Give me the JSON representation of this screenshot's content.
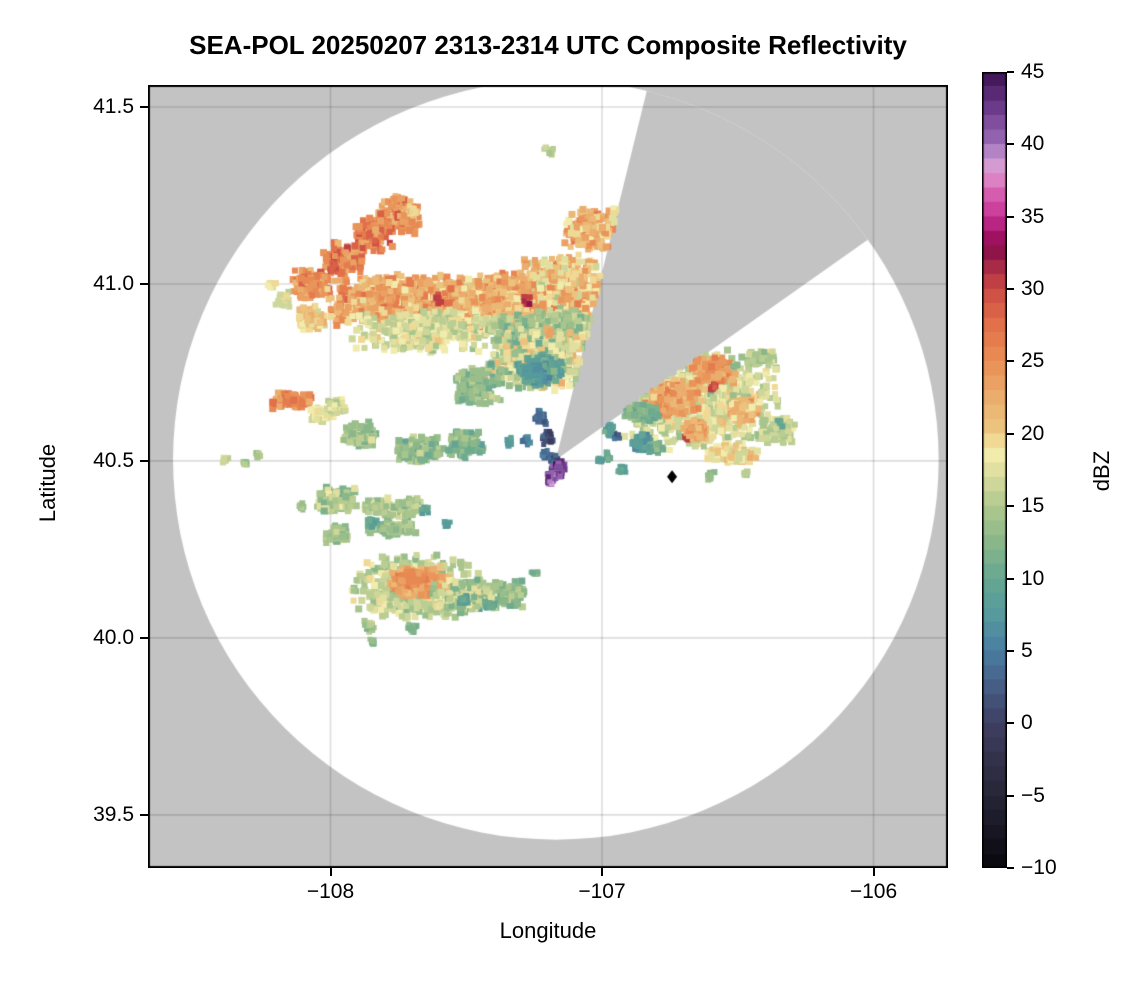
{
  "title": "SEA-POL 20250207 2313-2314 UTC Composite Reflectivity",
  "axes": {
    "xlabel": "Longitude",
    "ylabel": "Latitude",
    "x_ticks": [
      {
        "value": -108,
        "label": "−108"
      },
      {
        "value": -107,
        "label": "−107"
      },
      {
        "value": -106,
        "label": "−106"
      }
    ],
    "y_ticks": [
      {
        "value": 41.5,
        "label": "41.5"
      },
      {
        "value": 41.0,
        "label": "41.0"
      },
      {
        "value": 40.5,
        "label": "40.5"
      },
      {
        "value": 40.0,
        "label": "40.0"
      },
      {
        "value": 39.5,
        "label": "39.5"
      }
    ],
    "lon_min": -108.6722,
    "lon_max": -105.7257,
    "lat_min": 39.35,
    "lat_max": 41.562,
    "grid": true
  },
  "colorbar": {
    "label": "dBZ",
    "vmin": -10,
    "vmax": 45,
    "step": 1,
    "ticks": [
      {
        "value": 45,
        "label": "45"
      },
      {
        "value": 40,
        "label": "40"
      },
      {
        "value": 35,
        "label": "35"
      },
      {
        "value": 30,
        "label": "30"
      },
      {
        "value": 25,
        "label": "25"
      },
      {
        "value": 20,
        "label": "20"
      },
      {
        "value": 15,
        "label": "15"
      },
      {
        "value": 10,
        "label": "10"
      },
      {
        "value": 5,
        "label": "5"
      },
      {
        "value": 0,
        "label": "0"
      },
      {
        "value": -5,
        "label": "−5"
      },
      {
        "value": -10,
        "label": "−10"
      }
    ],
    "colormap_anchors": [
      [
        -10,
        "#08070c"
      ],
      [
        -7.5,
        "#171622"
      ],
      [
        -5,
        "#262536"
      ],
      [
        -2.5,
        "#33324b"
      ],
      [
        0,
        "#3f3f63"
      ],
      [
        2.5,
        "#465d85"
      ],
      [
        5,
        "#4a7da2"
      ],
      [
        7.5,
        "#569a9d"
      ],
      [
        10,
        "#66a791"
      ],
      [
        12.5,
        "#8ab78a"
      ],
      [
        15,
        "#b0c88e"
      ],
      [
        17.5,
        "#e2e0a0"
      ],
      [
        18.8,
        "#f6f0b0"
      ],
      [
        20,
        "#ecc982"
      ],
      [
        22.5,
        "#ebad6d"
      ],
      [
        25,
        "#e98f55"
      ],
      [
        27.5,
        "#e2704a"
      ],
      [
        30,
        "#cb4a43"
      ],
      [
        32.5,
        "#8f1449"
      ],
      [
        33.8,
        "#a31168"
      ],
      [
        35,
        "#c73394"
      ],
      [
        36.5,
        "#d55cae"
      ],
      [
        37.5,
        "#dc82c4"
      ],
      [
        38.8,
        "#d2a3d8"
      ],
      [
        40,
        "#9d6cb8"
      ],
      [
        42.5,
        "#6c3a8a"
      ],
      [
        45,
        "#3c1150"
      ]
    ]
  },
  "colors": {
    "background": "#ffffff",
    "no_data_gray": "#c3c3c3",
    "grid_line": "rgba(0,0,0,0.135)",
    "frame": "#000000",
    "marker": "#000000"
  },
  "chart_data": {
    "type": "heatmap",
    "units": "dBZ",
    "radar_center": {
      "lon": -107.17,
      "lat": 40.503
    },
    "range_radius_lon_deg": 1.41,
    "range_radius_lat_deg": 1.073,
    "blocked_sector": {
      "vertex": {
        "lon": -107.17,
        "lat": 40.503
      },
      "edge_a_through": {
        "lon": -106.84,
        "lat": 41.53
      },
      "edge_b_through": {
        "lon": -106.03,
        "lat": 41.12
      }
    },
    "site_marker": {
      "lon": -106.742,
      "lat": 40.455
    },
    "echo_region_fields": [
      "lon",
      "lat",
      "width_deg",
      "height_deg",
      "dbz",
      "dbz_spread",
      "n_cells",
      "cell_px"
    ],
    "echo_regions": [
      [
        -107.75,
        41.19,
        0.18,
        0.1,
        25,
        5,
        130,
        6
      ],
      [
        -107.84,
        41.14,
        0.16,
        0.1,
        26,
        5,
        130,
        6
      ],
      [
        -107.95,
        41.07,
        0.16,
        0.1,
        26,
        5,
        140,
        6
      ],
      [
        -108.07,
        41.0,
        0.16,
        0.09,
        25,
        5,
        140,
        6
      ],
      [
        -107.99,
        41.05,
        0.04,
        0.03,
        29,
        2,
        12,
        5
      ],
      [
        -107.76,
        41.23,
        0.06,
        0.04,
        24,
        3,
        25,
        5
      ],
      [
        -107.7,
        41.21,
        0.05,
        0.04,
        20,
        3,
        18,
        5
      ],
      [
        -108.22,
        40.997,
        0.04,
        0.03,
        18,
        2,
        10,
        5
      ],
      [
        -108.175,
        40.955,
        0.06,
        0.05,
        17,
        3,
        25,
        5
      ],
      [
        -107.74,
        40.955,
        0.55,
        0.15,
        23,
        6,
        750,
        6
      ],
      [
        -107.41,
        40.955,
        0.45,
        0.16,
        22,
        6,
        650,
        6
      ],
      [
        -107.135,
        40.99,
        0.34,
        0.2,
        21,
        7,
        520,
        6
      ],
      [
        -107.63,
        40.87,
        0.6,
        0.13,
        17,
        4,
        380,
        6
      ],
      [
        -107.1,
        40.875,
        0.25,
        0.12,
        15,
        5,
        200,
        6
      ],
      [
        -108.075,
        40.904,
        0.12,
        0.08,
        20,
        4,
        90,
        6
      ],
      [
        -107.6,
        40.96,
        0.03,
        0.03,
        30,
        2,
        8,
        5
      ],
      [
        -107.28,
        40.95,
        0.03,
        0.03,
        31,
        2,
        8,
        5
      ],
      [
        -107.04,
        41.15,
        0.2,
        0.13,
        22,
        5,
        170,
        6
      ],
      [
        -106.915,
        41.19,
        0.12,
        0.08,
        19,
        4,
        70,
        6
      ],
      [
        -107.195,
        41.376,
        0.04,
        0.03,
        15,
        2,
        8,
        5
      ],
      [
        -107.23,
        40.87,
        0.35,
        0.12,
        14,
        4,
        240,
        6
      ],
      [
        -107.23,
        40.785,
        0.4,
        0.18,
        17,
        8,
        480,
        6
      ],
      [
        -107.23,
        40.757,
        0.18,
        0.09,
        9,
        4,
        150,
        6
      ],
      [
        -107.255,
        40.752,
        0.07,
        0.04,
        7,
        2,
        45,
        6
      ],
      [
        -107.457,
        40.715,
        0.1,
        0.07,
        24,
        4,
        85,
        6
      ],
      [
        -107.457,
        40.715,
        0.2,
        0.13,
        13,
        4,
        130,
        6
      ],
      [
        -107.891,
        40.573,
        0.14,
        0.08,
        14,
        4,
        95,
        6
      ],
      [
        -107.67,
        40.531,
        0.18,
        0.08,
        13,
        4,
        115,
        6
      ],
      [
        -107.505,
        40.545,
        0.14,
        0.09,
        12,
        4,
        95,
        6
      ],
      [
        -108.142,
        40.672,
        0.16,
        0.055,
        25,
        4,
        95,
        6
      ],
      [
        -108.03,
        40.63,
        0.1,
        0.045,
        18,
        3,
        45,
        6
      ],
      [
        -107.976,
        40.655,
        0.08,
        0.05,
        17,
        3,
        38,
        5
      ],
      [
        -107.23,
        40.624,
        0.05,
        0.05,
        3,
        3,
        26,
        5
      ],
      [
        -107.2,
        40.568,
        0.045,
        0.05,
        1,
        3,
        22,
        5
      ],
      [
        -107.276,
        40.559,
        0.035,
        0.03,
        5,
        2,
        12,
        5
      ],
      [
        -107.339,
        40.554,
        0.03,
        0.03,
        8,
        2,
        10,
        5
      ],
      [
        -107.175,
        40.5,
        0.05,
        0.05,
        2,
        4,
        40,
        5
      ],
      [
        -107.16,
        40.475,
        0.05,
        0.06,
        42,
        3,
        50,
        5
      ],
      [
        -107.185,
        40.45,
        0.04,
        0.04,
        41,
        3,
        30,
        5
      ],
      [
        -107.21,
        40.52,
        0.03,
        0.03,
        4,
        2,
        12,
        5
      ],
      [
        -106.64,
        40.67,
        0.62,
        0.3,
        17,
        5,
        850,
        6
      ],
      [
        -106.74,
        40.68,
        0.22,
        0.12,
        23,
        4,
        220,
        6
      ],
      [
        -106.59,
        40.755,
        0.18,
        0.08,
        24,
        4,
        150,
        6
      ],
      [
        -106.585,
        40.71,
        0.03,
        0.025,
        30,
        2,
        10,
        5
      ],
      [
        -106.685,
        40.565,
        0.03,
        0.025,
        30,
        2,
        10,
        5
      ],
      [
        -106.654,
        40.588,
        0.1,
        0.06,
        23,
        3,
        90,
        6
      ],
      [
        -106.474,
        40.644,
        0.12,
        0.07,
        22,
        4,
        100,
        6
      ],
      [
        -106.86,
        40.638,
        0.14,
        0.06,
        12,
        3,
        90,
        6
      ],
      [
        -106.86,
        40.553,
        0.08,
        0.05,
        8,
        3,
        60,
        6
      ],
      [
        -106.945,
        40.568,
        0.03,
        0.03,
        3,
        2,
        12,
        5
      ],
      [
        -106.97,
        40.588,
        0.05,
        0.04,
        9,
        3,
        25,
        5
      ],
      [
        -106.8,
        40.54,
        0.06,
        0.04,
        11,
        3,
        40,
        5
      ],
      [
        -106.35,
        40.585,
        0.14,
        0.08,
        16,
        3,
        100,
        6
      ],
      [
        -106.41,
        40.79,
        0.1,
        0.05,
        15,
        3,
        50,
        6
      ],
      [
        -106.51,
        40.77,
        0.03,
        0.03,
        12,
        2,
        8,
        5
      ],
      [
        -106.52,
        40.52,
        0.2,
        0.06,
        19,
        4,
        120,
        6
      ],
      [
        -106.6,
        40.455,
        0.03,
        0.03,
        14,
        2,
        10,
        5
      ],
      [
        -106.47,
        40.47,
        0.03,
        0.03,
        15,
        2,
        8,
        5
      ],
      [
        -107.007,
        40.503,
        0.025,
        0.025,
        9,
        2,
        8,
        5
      ],
      [
        -106.345,
        40.607,
        0.025,
        0.025,
        9,
        2,
        6,
        5
      ],
      [
        -106.926,
        40.477,
        0.035,
        0.03,
        9,
        2,
        12,
        5
      ],
      [
        -106.978,
        40.514,
        0.03,
        0.03,
        10,
        2,
        10,
        5
      ],
      [
        -107.98,
        40.39,
        0.17,
        0.08,
        15,
        4,
        110,
        6
      ],
      [
        -107.762,
        40.367,
        0.25,
        0.06,
        15,
        4,
        140,
        6
      ],
      [
        -107.976,
        40.291,
        0.09,
        0.06,
        14,
        3,
        50,
        6
      ],
      [
        -107.78,
        40.31,
        0.2,
        0.05,
        14,
        3,
        80,
        6
      ],
      [
        -107.847,
        40.328,
        0.04,
        0.03,
        9,
        2,
        20,
        5
      ],
      [
        -107.652,
        40.362,
        0.03,
        0.025,
        9,
        2,
        12,
        5
      ],
      [
        -107.571,
        40.322,
        0.03,
        0.025,
        8,
        2,
        10,
        5
      ],
      [
        -107.69,
        40.141,
        0.5,
        0.19,
        16,
        4,
        520,
        6
      ],
      [
        -107.67,
        40.155,
        0.25,
        0.09,
        23,
        3,
        220,
        6
      ],
      [
        -107.707,
        40.169,
        0.12,
        0.05,
        25,
        2,
        80,
        6
      ],
      [
        -107.479,
        40.102,
        0.07,
        0.06,
        10,
        3,
        45,
        6
      ],
      [
        -107.35,
        40.12,
        0.14,
        0.09,
        13,
        4,
        100,
        6
      ],
      [
        -107.505,
        40.116,
        0.26,
        0.1,
        15,
        5,
        230,
        6
      ],
      [
        -107.505,
        40.107,
        0.04,
        0.03,
        9,
        2,
        25,
        5
      ],
      [
        -107.412,
        40.093,
        0.04,
        0.03,
        10,
        2,
        20,
        5
      ],
      [
        -107.854,
        40.031,
        0.05,
        0.04,
        14,
        3,
        25,
        5
      ],
      [
        -107.847,
        39.986,
        0.03,
        0.025,
        13,
        2,
        10,
        5
      ],
      [
        -107.7,
        40.028,
        0.04,
        0.03,
        12,
        2,
        20,
        5
      ],
      [
        -108.105,
        40.37,
        0.03,
        0.03,
        14,
        2,
        12,
        5
      ],
      [
        -107.25,
        40.185,
        0.03,
        0.025,
        12,
        2,
        8,
        5
      ],
      [
        -108.388,
        40.506,
        0.03,
        0.025,
        16,
        2,
        10,
        5
      ],
      [
        -108.315,
        40.494,
        0.03,
        0.025,
        14,
        2,
        8,
        5
      ],
      [
        -108.267,
        40.514,
        0.03,
        0.025,
        15,
        2,
        8,
        5
      ]
    ]
  }
}
